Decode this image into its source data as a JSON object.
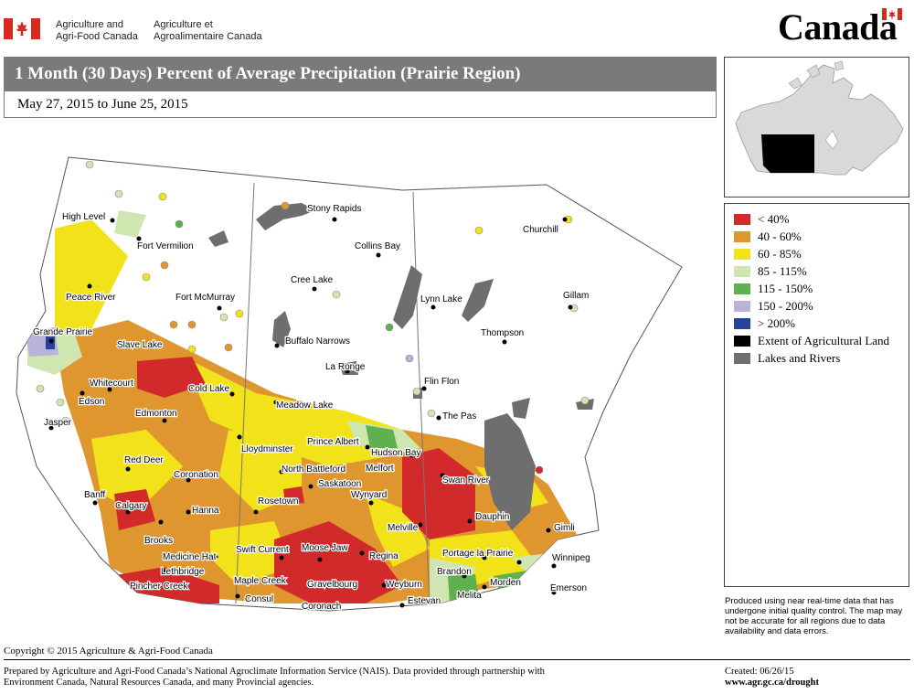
{
  "header": {
    "department_en_line1": "Agriculture and",
    "department_en_line2": "Agri-Food Canada",
    "department_fr_line1": "Agriculture et",
    "department_fr_line2": "Agroalimentaire Canada",
    "wordmark": "Canada",
    "flag_icon": "canada-flag-icon"
  },
  "title": "1 Month (30 Days) Percent of Average Precipitation  (Prairie Region)",
  "subtitle": "May 27, 2015 to June 25, 2015",
  "legend": {
    "items": [
      {
        "label": "< 40%",
        "color": "#d22a2a"
      },
      {
        "label": "40 - 60%",
        "color": "#e0962e"
      },
      {
        "label": "60 - 85%",
        "color": "#f2e21a"
      },
      {
        "label": "85 - 115%",
        "color": "#cfe6b0"
      },
      {
        "label": "115 - 150%",
        "color": "#5fb04f"
      },
      {
        "label": "150 - 200%",
        "color": "#b9b3d9"
      },
      {
        "label": "> 200%",
        "color": "#26439c"
      },
      {
        "label": "Extent of Agricultural Land",
        "color": "#000000"
      },
      {
        "label": "Lakes and Rivers",
        "color": "#6e6e6e"
      }
    ]
  },
  "disclaimer": "Produced using near real-time data that has undergone initial quality control.  The map may not be accurate for all regions due to data availability and data errors.",
  "footer": {
    "copyright": "Copyright © 2015 Agriculture & Agri-Food Canada",
    "prepared_line1": "Prepared by Agriculture and Agri-Food Canada’s National Agroclimate Information Service (NAIS).   Data provided through partnership with",
    "prepared_line2": "Environment Canada, Natural Resources Canada, and many Provincial agencies.",
    "created": "Created: 06/26/15",
    "website": "www.agr.gc.ca/drought"
  },
  "map": {
    "cities": {
      "high_level": "High Level",
      "fort_vermilion": "Fort Vermilion",
      "peace_river": "Peace River",
      "fort_mcmurray": "Fort McMurray",
      "grande_prairie": "Grande Prairie",
      "slave_lake": "Slave Lake",
      "whitecourt": "Whitecourt",
      "edson": "Edson",
      "cold_lake": "Cold Lake",
      "edmonton": "Edmonton",
      "jasper": "Jasper",
      "red_deer": "Red Deer",
      "coronation": "Coronation",
      "banff": "Banff",
      "calgary": "Calgary",
      "hanna": "Hanna",
      "brooks": "Brooks",
      "medicine_hat": "Medicine Hat",
      "lethbridge": "Lethbridge",
      "pincher_creek": "Pincher Creek",
      "stony_rapids": "Stony Rapids",
      "collins_bay": "Collins Bay",
      "cree_lake": "Cree Lake",
      "buffalo_narrows": "Buffalo Narrows",
      "la_ronge": "La Ronge",
      "meadow_lake": "Meadow Lake",
      "lloydminster": "Lloydminster",
      "prince_albert": "Prince Albert",
      "north_battleford": "North Battleford",
      "hudson_bay": "Hudson Bay",
      "melfort": "Melfort",
      "saskatoon": "Saskatoon",
      "wynyard": "Wynyard",
      "rosetown": "Rosetown",
      "swift_current": "Swift Current",
      "moose_jaw": "Moose Jaw",
      "regina": "Regina",
      "maple_creek": "Maple Creek",
      "gravelbourg": "Gravelbourg",
      "consul": "Consul",
      "coronach": "Coronach",
      "weyburn": "Weyburn",
      "estevan": "Estevan",
      "melville": "Melville",
      "churchill": "Churchill",
      "lynn_lake": "Lynn Lake",
      "gillam": "Gillam",
      "thompson": "Thompson",
      "flin_flon": "Flin Flon",
      "the_pas": "The Pas",
      "swan_river": "Swan River",
      "dauphin": "Dauphin",
      "gimli": "Gimli",
      "portage_la_prairie": "Portage la Prairie",
      "winnipeg": "Winnipeg",
      "brandon": "Brandon",
      "morden": "Morden",
      "melita": "Melita",
      "emerson": "Emerson"
    }
  }
}
